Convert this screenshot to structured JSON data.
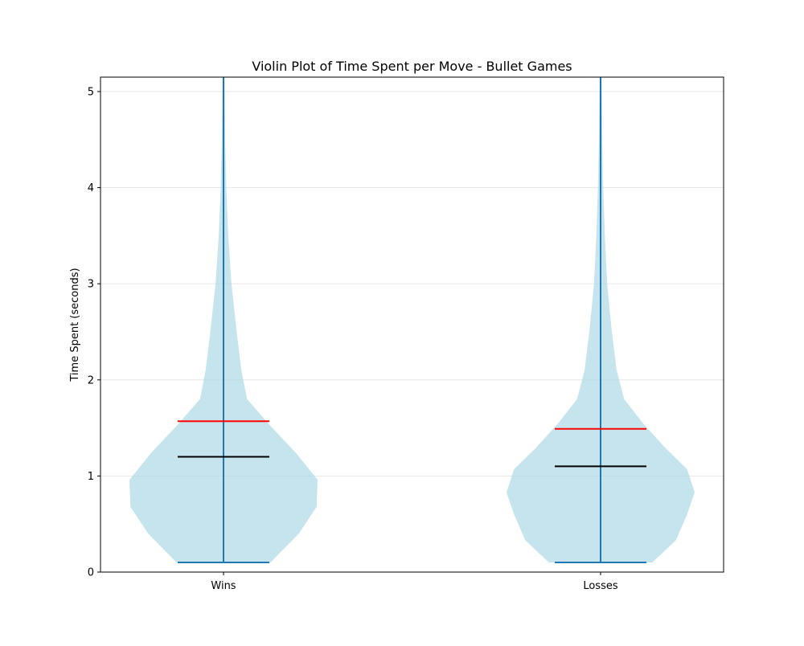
{
  "chart_data": {
    "type": "violin",
    "title": "Violin Plot of Time Spent per Move - Bullet Games",
    "xlabel": "",
    "ylabel": "Time Spent (seconds)",
    "categories": [
      "Wins",
      "Losses"
    ],
    "ylim": [
      0,
      5.15
    ],
    "yticks": [
      0,
      1,
      2,
      3,
      4,
      5
    ],
    "grid": "y",
    "colors": {
      "violin_fill": "#add8e6",
      "whisker_line": "#1f77b4",
      "median_line": "#000000",
      "mean_line": "#ff0000",
      "grid": "#e6e6e6",
      "axes": "#000000"
    },
    "series": [
      {
        "category": "Wins",
        "min": 0.1,
        "max": 5.15,
        "median": 1.2,
        "mean": 1.57,
        "density_profile": [
          {
            "y": 0.1,
            "w": 0.5
          },
          {
            "y": 0.4,
            "w": 0.8
          },
          {
            "y": 0.68,
            "w": 0.99
          },
          {
            "y": 0.96,
            "w": 1.0
          },
          {
            "y": 1.24,
            "w": 0.77
          },
          {
            "y": 1.52,
            "w": 0.5
          },
          {
            "y": 1.8,
            "w": 0.25
          },
          {
            "y": 2.1,
            "w": 0.19
          },
          {
            "y": 2.5,
            "w": 0.14
          },
          {
            "y": 3.0,
            "w": 0.085
          },
          {
            "y": 3.5,
            "w": 0.05
          },
          {
            "y": 4.0,
            "w": 0.03
          },
          {
            "y": 4.5,
            "w": 0.018
          },
          {
            "y": 5.0,
            "w": 0.012
          },
          {
            "y": 5.15,
            "w": 0.01
          }
        ]
      },
      {
        "category": "Losses",
        "min": 0.1,
        "max": 5.15,
        "median": 1.1,
        "mean": 1.49,
        "density_profile": [
          {
            "y": 0.1,
            "w": 0.55
          },
          {
            "y": 0.33,
            "w": 0.8
          },
          {
            "y": 0.6,
            "w": 0.92
          },
          {
            "y": 0.83,
            "w": 1.0
          },
          {
            "y": 1.07,
            "w": 0.92
          },
          {
            "y": 1.3,
            "w": 0.68
          },
          {
            "y": 1.55,
            "w": 0.45
          },
          {
            "y": 1.8,
            "w": 0.25
          },
          {
            "y": 2.1,
            "w": 0.17
          },
          {
            "y": 2.5,
            "w": 0.12
          },
          {
            "y": 3.0,
            "w": 0.07
          },
          {
            "y": 3.5,
            "w": 0.045
          },
          {
            "y": 4.0,
            "w": 0.028
          },
          {
            "y": 4.5,
            "w": 0.018
          },
          {
            "y": 5.0,
            "w": 0.012
          },
          {
            "y": 5.15,
            "w": 0.01
          }
        ]
      }
    ]
  }
}
